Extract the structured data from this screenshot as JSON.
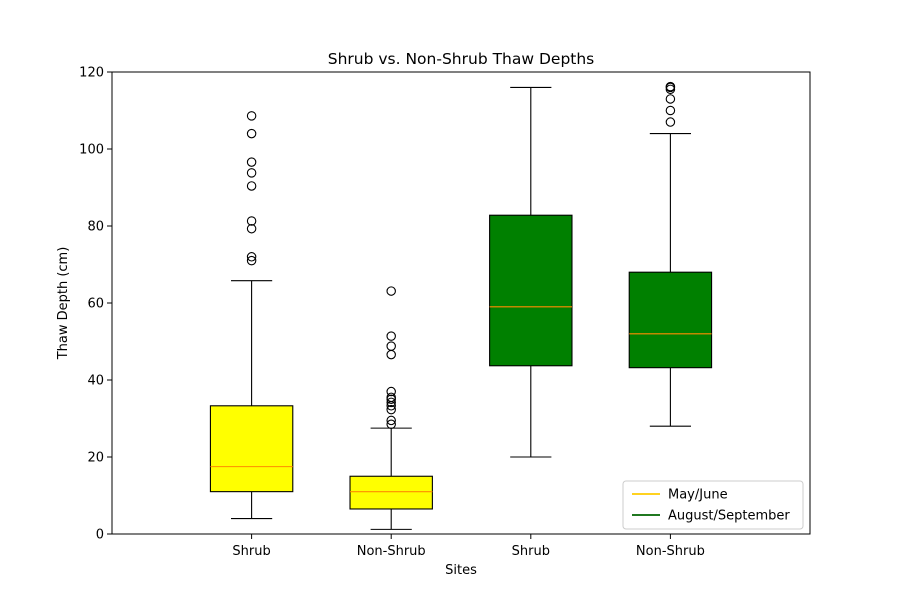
{
  "chart_data": {
    "type": "boxplot",
    "title": "Shrub vs. Non-Shrub Thaw Depths",
    "xlabel": "Sites",
    "ylabel": "Thaw Depth (cm)",
    "ylim": [
      0,
      120
    ],
    "yticks": [
      0,
      20,
      40,
      60,
      80,
      100,
      120
    ],
    "grid": false,
    "legend_position": "lower-right",
    "categories": [
      "Shrub",
      "Non-Shrub",
      "Shrub",
      "Non-Shrub"
    ],
    "legend": [
      {
        "label": "May/June",
        "color": "#ffcc00"
      },
      {
        "label": "August/September",
        "color": "#006400"
      }
    ],
    "boxes": [
      {
        "category": "Shrub",
        "season": "May/June",
        "fill": "#ffff00",
        "median_color": "#ff8c00",
        "whisker_low": 4,
        "q1": 11,
        "median": 17.5,
        "q3": 33.3,
        "whisker_high": 65.8,
        "outliers": [
          71,
          72,
          79.3,
          81.3,
          90.4,
          93.8,
          96.6,
          104,
          108.6
        ]
      },
      {
        "category": "Non-Shrub",
        "season": "May/June",
        "fill": "#ffff00",
        "median_color": "#ff8c00",
        "whisker_low": 1.2,
        "q1": 6.5,
        "median": 11,
        "q3": 15,
        "whisker_high": 27.5,
        "outliers": [
          28.5,
          29.5,
          32.3,
          33.3,
          34.2,
          35,
          35.5,
          37,
          46.6,
          48.8,
          51.4,
          63.1
        ]
      },
      {
        "category": "Shrub",
        "season": "August/September",
        "fill": "#008000",
        "median_color": "#ff8c00",
        "whisker_low": 20,
        "q1": 43.7,
        "median": 59,
        "q3": 82.8,
        "whisker_high": 116,
        "outliers": []
      },
      {
        "category": "Non-Shrub",
        "season": "August/September",
        "fill": "#008000",
        "median_color": "#ff8c00",
        "whisker_low": 28,
        "q1": 43.2,
        "median": 52,
        "q3": 68,
        "whisker_high": 104,
        "outliers": [
          107,
          110,
          113,
          115.5,
          116,
          116.2
        ]
      }
    ]
  }
}
